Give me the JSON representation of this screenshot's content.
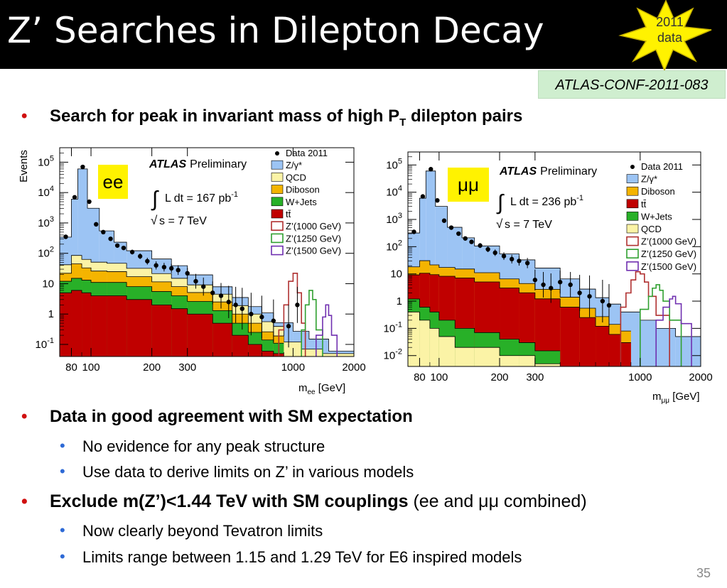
{
  "slide": {
    "title": "Z’ Searches in Dilepton Decay",
    "badge_line1": "2011",
    "badge_line2": "data",
    "reference": "ATLAS-CONF-2011-083",
    "page_number": "35"
  },
  "bullets": {
    "b1_pre": "Search for peak in invariant mass of high P",
    "b1_sub": "T",
    "b1_post": " dilepton pairs",
    "b2": "Data in good agreement with SM expectation",
    "b2_1": "No evidence for any peak structure",
    "b2_2": "Use data to derive limits on Z’ in various models",
    "b3_bold": "Exclude m(Z’)<1.44 TeV with SM couplings",
    "b3_rest": " (ee and μμ combined)",
    "b3_1": "Now clearly beyond Tevatron limits",
    "b3_2": "Limits range between 1.15 and 1.29 TeV for E6 inspired models"
  },
  "colors": {
    "zgamma": "#9cc4f4",
    "qcd": "#fbf3a6",
    "diboson": "#f4b400",
    "wjets": "#28b028",
    "ttbar": "#c00000",
    "zp1000": "#b03030",
    "zp1250": "#30a030",
    "zp1500": "#7030b0",
    "label_bg": "#fff200"
  },
  "chart_data": [
    {
      "type": "area",
      "channel_label": "ee",
      "brand": "ATLAS",
      "preliminary": "Preliminary",
      "lumi": "L dt = 167 pb",
      "lumi_exp": "-1",
      "energy": "s = 7 TeV",
      "ylabel": "Events",
      "xlabel": "m",
      "xlabel_sub": "ee",
      "xlabel_unit": " [GeV]",
      "xscale": "log",
      "yscale": "log",
      "xlim": [
        70,
        2000
      ],
      "ylim": [
        0.04,
        300000
      ],
      "x_ticks": [
        {
          "v": 80,
          "label": "80"
        },
        {
          "v": 100,
          "label": "100"
        },
        {
          "v": 200,
          "label": "200"
        },
        {
          "v": 300,
          "label": "300"
        },
        {
          "v": 1000,
          "label": "1000"
        },
        {
          "v": 2000,
          "label": "2000"
        }
      ],
      "y_ticks": [
        {
          "v": 0.1,
          "base": "10",
          "exp": "-1"
        },
        {
          "v": 1,
          "base": "1",
          "exp": ""
        },
        {
          "v": 10,
          "base": "10",
          "exp": ""
        },
        {
          "v": 100,
          "base": "10",
          "exp": "2"
        },
        {
          "v": 1000,
          "base": "10",
          "exp": "3"
        },
        {
          "v": 10000,
          "base": "10",
          "exp": "4"
        },
        {
          "v": 100000,
          "base": "10",
          "exp": "5"
        }
      ],
      "legend": [
        {
          "label": "Data 2011",
          "kind": "data"
        },
        {
          "label": "Z/γ*",
          "kind": "fill",
          "color": "zgamma"
        },
        {
          "label": "QCD",
          "kind": "fill",
          "color": "qcd"
        },
        {
          "label": "Diboson",
          "kind": "fill",
          "color": "diboson"
        },
        {
          "label": "W+Jets",
          "kind": "fill",
          "color": "wjets"
        },
        {
          "label": "tt̄",
          "kind": "fill",
          "color": "ttbar"
        },
        {
          "label": "Z’(1000 GeV)",
          "kind": "line",
          "color": "zp1000"
        },
        {
          "label": "Z’(1250 GeV)",
          "kind": "line",
          "color": "zp1250"
        },
        {
          "label": "Z’(1500 GeV)",
          "kind": "line",
          "color": "zp1500"
        }
      ],
      "stack": [
        {
          "name": "ttbar",
          "color": "ttbar",
          "edges": [
            70,
            80,
            90,
            100,
            120,
            150,
            200,
            250,
            300,
            400,
            500,
            600,
            700,
            800,
            900
          ],
          "values": [
            5,
            6,
            5,
            4,
            4,
            3,
            2,
            1.5,
            1,
            0.5,
            0.2,
            0.1,
            0.06,
            0.05
          ]
        },
        {
          "name": "wjets",
          "color": "wjets",
          "edges": [
            70,
            80,
            90,
            100,
            120,
            150,
            200,
            250,
            300,
            400,
            500,
            600,
            700,
            800,
            900
          ],
          "values": [
            7,
            9,
            8,
            7,
            7,
            5,
            3.5,
            2.5,
            1.6,
            0.8,
            0.3,
            0.15,
            0.08,
            0.06
          ]
        },
        {
          "name": "diboson",
          "color": "diboson",
          "edges": [
            70,
            80,
            90,
            100,
            120,
            150,
            200,
            250,
            300,
            400,
            500,
            600,
            700,
            800,
            900
          ],
          "values": [
            10,
            30,
            20,
            15,
            14,
            9,
            6,
            4,
            2.5,
            1.2,
            0.5,
            0.25,
            0.12,
            0.08
          ]
        },
        {
          "name": "qcd",
          "color": "qcd",
          "edges": [
            70,
            80,
            90,
            100,
            120,
            150,
            200,
            250,
            300,
            400,
            500,
            600,
            700,
            800,
            900,
            1100,
            1400,
            2000
          ],
          "values": [
            20,
            40,
            30,
            25,
            22,
            15,
            10,
            7,
            4,
            2,
            0.9,
            0.5,
            0.3,
            0.2,
            0.12,
            0.07,
            0.05
          ]
        },
        {
          "name": "zgamma",
          "color": "zgamma",
          "edges": [
            70,
            80,
            86,
            96,
            110,
            130,
            150,
            200,
            250,
            300,
            400,
            500,
            600,
            700,
            800,
            1000,
            1200,
            1500,
            2000
          ],
          "values": [
            300,
            6000,
            60000,
            3000,
            500,
            200,
            100,
            50,
            30,
            15,
            6,
            2.5,
            1.2,
            0.7,
            0.4,
            0.2,
            0.1,
            0.06
          ]
        }
      ],
      "data_points": [
        [
          75,
          350
        ],
        [
          83,
          7000
        ],
        [
          91,
          70000
        ],
        [
          98,
          5000
        ],
        [
          106,
          900
        ],
        [
          115,
          500
        ],
        [
          125,
          300
        ],
        [
          135,
          180
        ],
        [
          145,
          150
        ],
        [
          160,
          110
        ],
        [
          175,
          80
        ],
        [
          190,
          55
        ],
        [
          210,
          40
        ],
        [
          230,
          35
        ],
        [
          250,
          32
        ],
        [
          270,
          28
        ],
        [
          300,
          22
        ],
        [
          330,
          12
        ],
        [
          360,
          8
        ],
        [
          400,
          5
        ],
        [
          440,
          4
        ],
        [
          480,
          2.5
        ],
        [
          520,
          2
        ],
        [
          560,
          1.5
        ],
        [
          620,
          1
        ],
        [
          700,
          0.8
        ],
        [
          800,
          0.6
        ],
        [
          950,
          0.4
        ],
        [
          1050,
          2
        ]
      ],
      "signals": [
        {
          "name": "Z’(1000 GeV)",
          "color": "zp1000",
          "edges": [
            850,
            900,
            950,
            1000,
            1050,
            1100,
            1150
          ],
          "values": [
            0.3,
            2,
            12,
            22,
            5,
            0.5
          ]
        },
        {
          "name": "Z’(1250 GeV)",
          "color": "zp1250",
          "edges": [
            1100,
            1150,
            1200,
            1250,
            1300,
            1400
          ],
          "values": [
            0.3,
            2,
            6,
            3,
            0.3
          ]
        },
        {
          "name": "Z’(1500 GeV)",
          "color": "zp1500",
          "edges": [
            1300,
            1400,
            1450,
            1500,
            1550,
            1650
          ],
          "values": [
            0.2,
            0.8,
            2,
            0.9,
            0.2
          ]
        }
      ]
    },
    {
      "type": "area",
      "channel_label": "μμ",
      "brand": "ATLAS",
      "preliminary": "Preliminary",
      "lumi": "L dt = 236 pb",
      "lumi_exp": "-1",
      "energy": "s = 7 TeV",
      "ylabel": "",
      "xlabel": "m",
      "xlabel_sub": "μμ",
      "xlabel_unit": " [GeV]",
      "xscale": "log",
      "yscale": "log",
      "xlim": [
        70,
        2000
      ],
      "ylim": [
        0.004,
        300000
      ],
      "x_ticks": [
        {
          "v": 80,
          "label": "80"
        },
        {
          "v": 100,
          "label": "100"
        },
        {
          "v": 200,
          "label": "200"
        },
        {
          "v": 300,
          "label": "300"
        },
        {
          "v": 1000,
          "label": "1000"
        },
        {
          "v": 2000,
          "label": "2000"
        }
      ],
      "y_ticks": [
        {
          "v": 0.01,
          "base": "10",
          "exp": "-2"
        },
        {
          "v": 0.1,
          "base": "10",
          "exp": "-1"
        },
        {
          "v": 1,
          "base": "1",
          "exp": ""
        },
        {
          "v": 10,
          "base": "10",
          "exp": ""
        },
        {
          "v": 100,
          "base": "10",
          "exp": "2"
        },
        {
          "v": 1000,
          "base": "10",
          "exp": "3"
        },
        {
          "v": 10000,
          "base": "10",
          "exp": "4"
        },
        {
          "v": 100000,
          "base": "10",
          "exp": "5"
        }
      ],
      "legend": [
        {
          "label": "Data 2011",
          "kind": "data"
        },
        {
          "label": "Z/γ*",
          "kind": "fill",
          "color": "zgamma"
        },
        {
          "label": "Diboson",
          "kind": "fill",
          "color": "diboson"
        },
        {
          "label": "tt̄",
          "kind": "fill",
          "color": "ttbar"
        },
        {
          "label": "W+Jets",
          "kind": "fill",
          "color": "wjets"
        },
        {
          "label": "QCD",
          "kind": "fill",
          "color": "qcd"
        },
        {
          "label": "Z’(1000 GeV)",
          "kind": "line",
          "color": "zp1000"
        },
        {
          "label": "Z’(1250 GeV)",
          "kind": "line",
          "color": "zp1250"
        },
        {
          "label": "Z’(1500 GeV)",
          "kind": "line",
          "color": "zp1500"
        }
      ],
      "stack": [
        {
          "name": "qcd",
          "color": "qcd",
          "edges": [
            70,
            80,
            90,
            100,
            120,
            150,
            200,
            250,
            300,
            400
          ],
          "values": [
            0.4,
            0.2,
            0.1,
            0.05,
            0.02,
            0.02,
            0.01,
            0.01,
            0.005
          ]
        },
        {
          "name": "wjets",
          "color": "wjets",
          "edges": [
            70,
            80,
            90,
            100,
            120,
            150,
            200,
            250,
            300,
            400
          ],
          "values": [
            0.8,
            0.4,
            0.3,
            0.15,
            0.08,
            0.05,
            0.03,
            0.02,
            0.01
          ]
        },
        {
          "name": "ttbar",
          "color": "ttbar",
          "edges": [
            70,
            80,
            90,
            100,
            120,
            150,
            200,
            250,
            300,
            400,
            500,
            600,
            700,
            800,
            900
          ],
          "values": [
            8,
            10,
            9,
            8,
            7,
            5,
            3,
            2,
            1.2,
            0.6,
            0.25,
            0.12,
            0.06,
            0.03
          ]
        },
        {
          "name": "diboson",
          "color": "diboson",
          "edges": [
            70,
            80,
            90,
            100,
            120,
            150,
            200,
            250,
            300,
            400,
            500,
            600,
            700,
            800,
            900
          ],
          "values": [
            9,
            20,
            12,
            9,
            8,
            6,
            3.5,
            2.4,
            1.5,
            0.8,
            0.3,
            0.15,
            0.08,
            0.05
          ]
        },
        {
          "name": "zgamma",
          "color": "zgamma",
          "edges": [
            70,
            80,
            86,
            96,
            110,
            130,
            150,
            200,
            250,
            300,
            400,
            500,
            600,
            700,
            800,
            1000,
            1200,
            1500,
            2000
          ],
          "values": [
            300,
            6000,
            60000,
            3000,
            500,
            200,
            100,
            50,
            30,
            15,
            6,
            2.5,
            1.2,
            0.7,
            0.4,
            0.2,
            0.1,
            0.05
          ]
        }
      ],
      "data_points": [
        [
          75,
          350
        ],
        [
          83,
          7000
        ],
        [
          91,
          70000
        ],
        [
          98,
          5000
        ],
        [
          106,
          900
        ],
        [
          115,
          500
        ],
        [
          125,
          300
        ],
        [
          135,
          200
        ],
        [
          145,
          150
        ],
        [
          160,
          110
        ],
        [
          175,
          80
        ],
        [
          190,
          60
        ],
        [
          210,
          45
        ],
        [
          230,
          35
        ],
        [
          250,
          30
        ],
        [
          275,
          25
        ],
        [
          300,
          6
        ],
        [
          330,
          4
        ],
        [
          360,
          3
        ],
        [
          400,
          5
        ],
        [
          450,
          4
        ],
        [
          500,
          2
        ],
        [
          560,
          1.5
        ],
        [
          650,
          1
        ],
        [
          700,
          0.7
        ]
      ],
      "signals": [
        {
          "name": "Z’(1000 GeV)",
          "color": "zp1000",
          "edges": [
            800,
            850,
            900,
            950,
            1000,
            1050,
            1100,
            1200,
            1400
          ],
          "values": [
            0.6,
            2,
            6,
            12,
            10,
            5,
            1.5,
            0.3
          ]
        },
        {
          "name": "Z’(1250 GeV)",
          "color": "zp1250",
          "edges": [
            1000,
            1100,
            1150,
            1200,
            1250,
            1300,
            1400,
            1600
          ],
          "values": [
            0.5,
            1.5,
            3,
            4,
            2.5,
            1,
            0.2
          ]
        },
        {
          "name": "Z’(1500 GeV)",
          "color": "zp1500",
          "edges": [
            1200,
            1300,
            1400,
            1450,
            1500,
            1600,
            1800
          ],
          "values": [
            0.2,
            0.6,
            1.2,
            1.5,
            0.8,
            0.15
          ]
        }
      ]
    }
  ]
}
